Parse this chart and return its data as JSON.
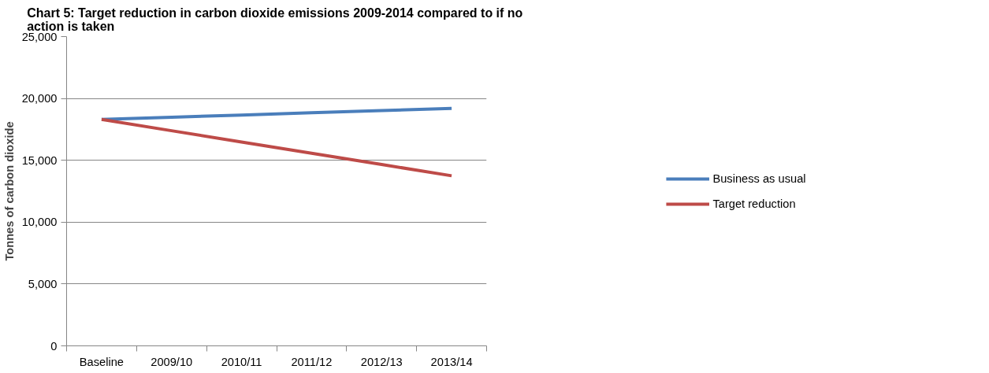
{
  "chart_data": {
    "type": "line",
    "title": "Chart 5:  Target reduction in carbon dioxide emissions 2009-2014 compared to if no action is taken",
    "ylabel": "Tonnes of carbon dioxide",
    "categories": [
      "Baseline",
      "2009/10",
      "2010/11",
      "2011/12",
      "2012/13",
      "2013/14"
    ],
    "series": [
      {
        "name": "Business as usual",
        "color": "#4a7ebb",
        "values": [
          18300,
          18480,
          18660,
          18840,
          19020,
          19200
        ]
      },
      {
        "name": "Target reduction",
        "color": "#be4b48",
        "values": [
          18300,
          17390,
          16480,
          15570,
          14660,
          13750
        ]
      }
    ],
    "ylim": [
      0,
      25000
    ],
    "yticks": [
      {
        "value": 0,
        "label": "0"
      },
      {
        "value": 5000,
        "label": "5,000"
      },
      {
        "value": 10000,
        "label": "10,000"
      },
      {
        "value": 15000,
        "label": "15,000"
      },
      {
        "value": 20000,
        "label": "20,000"
      },
      {
        "value": 25000,
        "label": "25,000"
      }
    ],
    "grid": "y",
    "legend": "right",
    "marker": "none",
    "line_style": "solid"
  }
}
